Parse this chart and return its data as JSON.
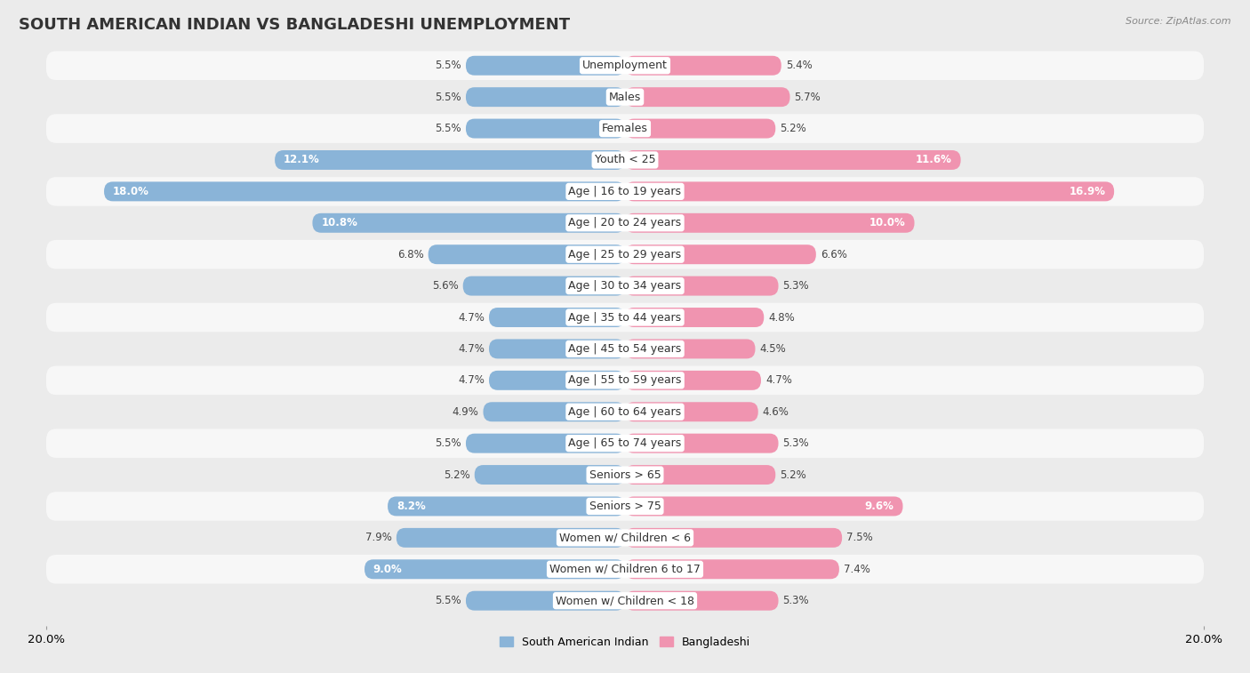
{
  "title": "SOUTH AMERICAN INDIAN VS BANGLADESHI UNEMPLOYMENT",
  "source": "Source: ZipAtlas.com",
  "categories": [
    "Unemployment",
    "Males",
    "Females",
    "Youth < 25",
    "Age | 16 to 19 years",
    "Age | 20 to 24 years",
    "Age | 25 to 29 years",
    "Age | 30 to 34 years",
    "Age | 35 to 44 years",
    "Age | 45 to 54 years",
    "Age | 55 to 59 years",
    "Age | 60 to 64 years",
    "Age | 65 to 74 years",
    "Seniors > 65",
    "Seniors > 75",
    "Women w/ Children < 6",
    "Women w/ Children 6 to 17",
    "Women w/ Children < 18"
  ],
  "south_american_indian": [
    5.5,
    5.5,
    5.5,
    12.1,
    18.0,
    10.8,
    6.8,
    5.6,
    4.7,
    4.7,
    4.7,
    4.9,
    5.5,
    5.2,
    8.2,
    7.9,
    9.0,
    5.5
  ],
  "bangladeshi": [
    5.4,
    5.7,
    5.2,
    11.6,
    16.9,
    10.0,
    6.6,
    5.3,
    4.8,
    4.5,
    4.7,
    4.6,
    5.3,
    5.2,
    9.6,
    7.5,
    7.4,
    5.3
  ],
  "color_left": "#8ab4d8",
  "color_right": "#f094b0",
  "axis_max": 20.0,
  "bg_color": "#ebebeb",
  "row_color_odd": "#f7f7f7",
  "row_color_even": "#ebebeb",
  "title_fontsize": 13,
  "label_fontsize": 9,
  "value_fontsize": 8.5,
  "legend_fontsize": 9
}
